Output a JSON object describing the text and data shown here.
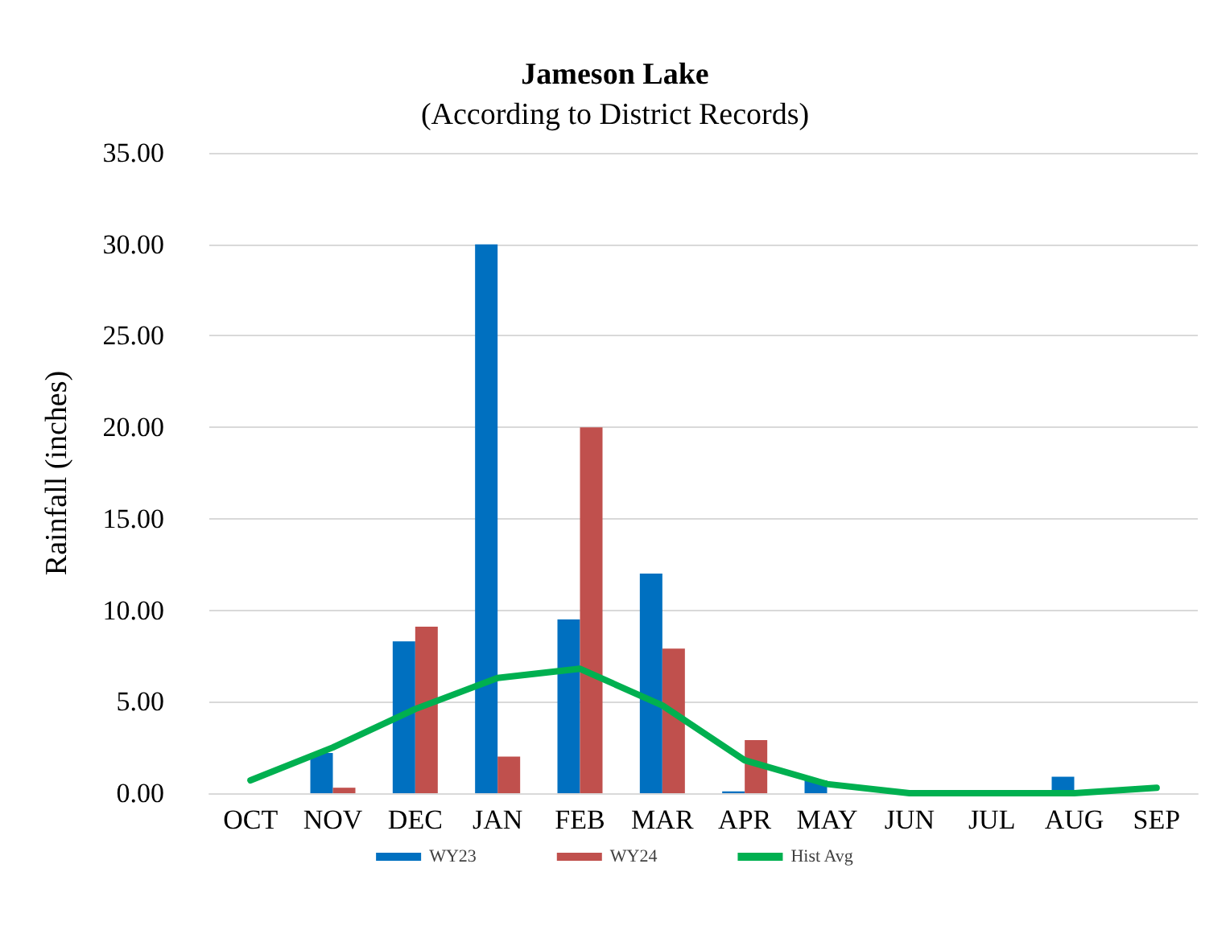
{
  "chart_data": {
    "type": "bar",
    "title": "Jameson Lake",
    "subtitle": "(According to District Records)",
    "ylabel": "Rainfall (inches)",
    "categories": [
      "OCT",
      "NOV",
      "DEC",
      "JAN",
      "FEB",
      "MAR",
      "APR",
      "MAY",
      "JUN",
      "JUL",
      "AUG",
      "SEP"
    ],
    "series": [
      {
        "name": "WY23",
        "color": "#0070c0",
        "values": [
          0,
          2.2,
          8.3,
          30.0,
          9.5,
          12.0,
          0.1,
          0.7,
          0,
          0,
          0.9,
          0
        ]
      },
      {
        "name": "WY24",
        "color": "#c0504d",
        "values": [
          0,
          0.3,
          9.1,
          2.0,
          20.0,
          7.9,
          2.9,
          0,
          0,
          0,
          0,
          0
        ]
      },
      {
        "name": "Hist Avg",
        "type": "line",
        "color": "#00b050",
        "values": [
          0.7,
          2.5,
          4.6,
          6.3,
          6.8,
          4.8,
          1.8,
          0.5,
          0.0,
          0.0,
          0.0,
          0.3
        ]
      }
    ],
    "ylim": [
      0,
      35
    ],
    "yticks": [
      {
        "value": 0,
        "label": "0.00"
      },
      {
        "value": 5,
        "label": "5.00"
      },
      {
        "value": 10,
        "label": "10.00"
      },
      {
        "value": 15,
        "label": "15.00"
      },
      {
        "value": 20,
        "label": "20.00"
      },
      {
        "value": 25,
        "label": "25.00"
      },
      {
        "value": 30,
        "label": "30.00"
      },
      {
        "value": 35,
        "label": "35.00"
      }
    ],
    "grid": "y",
    "legend": "bottom",
    "marker": "none",
    "line_style": "solid"
  }
}
